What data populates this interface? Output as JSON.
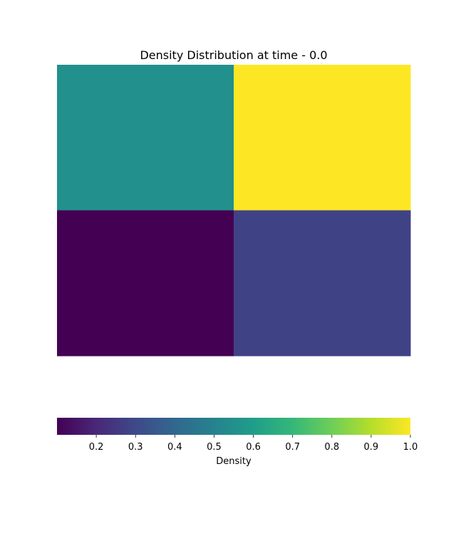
{
  "chart_data": {
    "type": "heatmap",
    "title": "Density Distribution at time - 0.0",
    "grid": false,
    "axes_visible": false,
    "cells": [
      [
        0.55,
        1.0
      ],
      [
        0.1,
        0.28
      ]
    ],
    "colorbar": {
      "label": "Density",
      "orientation": "horizontal",
      "placement": "bottom",
      "range": [
        0.1,
        1.0
      ],
      "ticks": [
        0.2,
        0.3,
        0.4,
        0.5,
        0.6,
        0.7,
        0.8,
        0.9,
        1.0
      ],
      "tick_labels": [
        "0.2",
        "0.3",
        "0.4",
        "0.5",
        "0.6",
        "0.7",
        "0.8",
        "0.9",
        "1.0"
      ],
      "colormap": "viridis",
      "colormap_stops": [
        "#440154",
        "#482878",
        "#3e4989",
        "#31688e",
        "#26828e",
        "#1f9e89",
        "#35b779",
        "#6ece58",
        "#b5de2b",
        "#fde725"
      ]
    }
  }
}
